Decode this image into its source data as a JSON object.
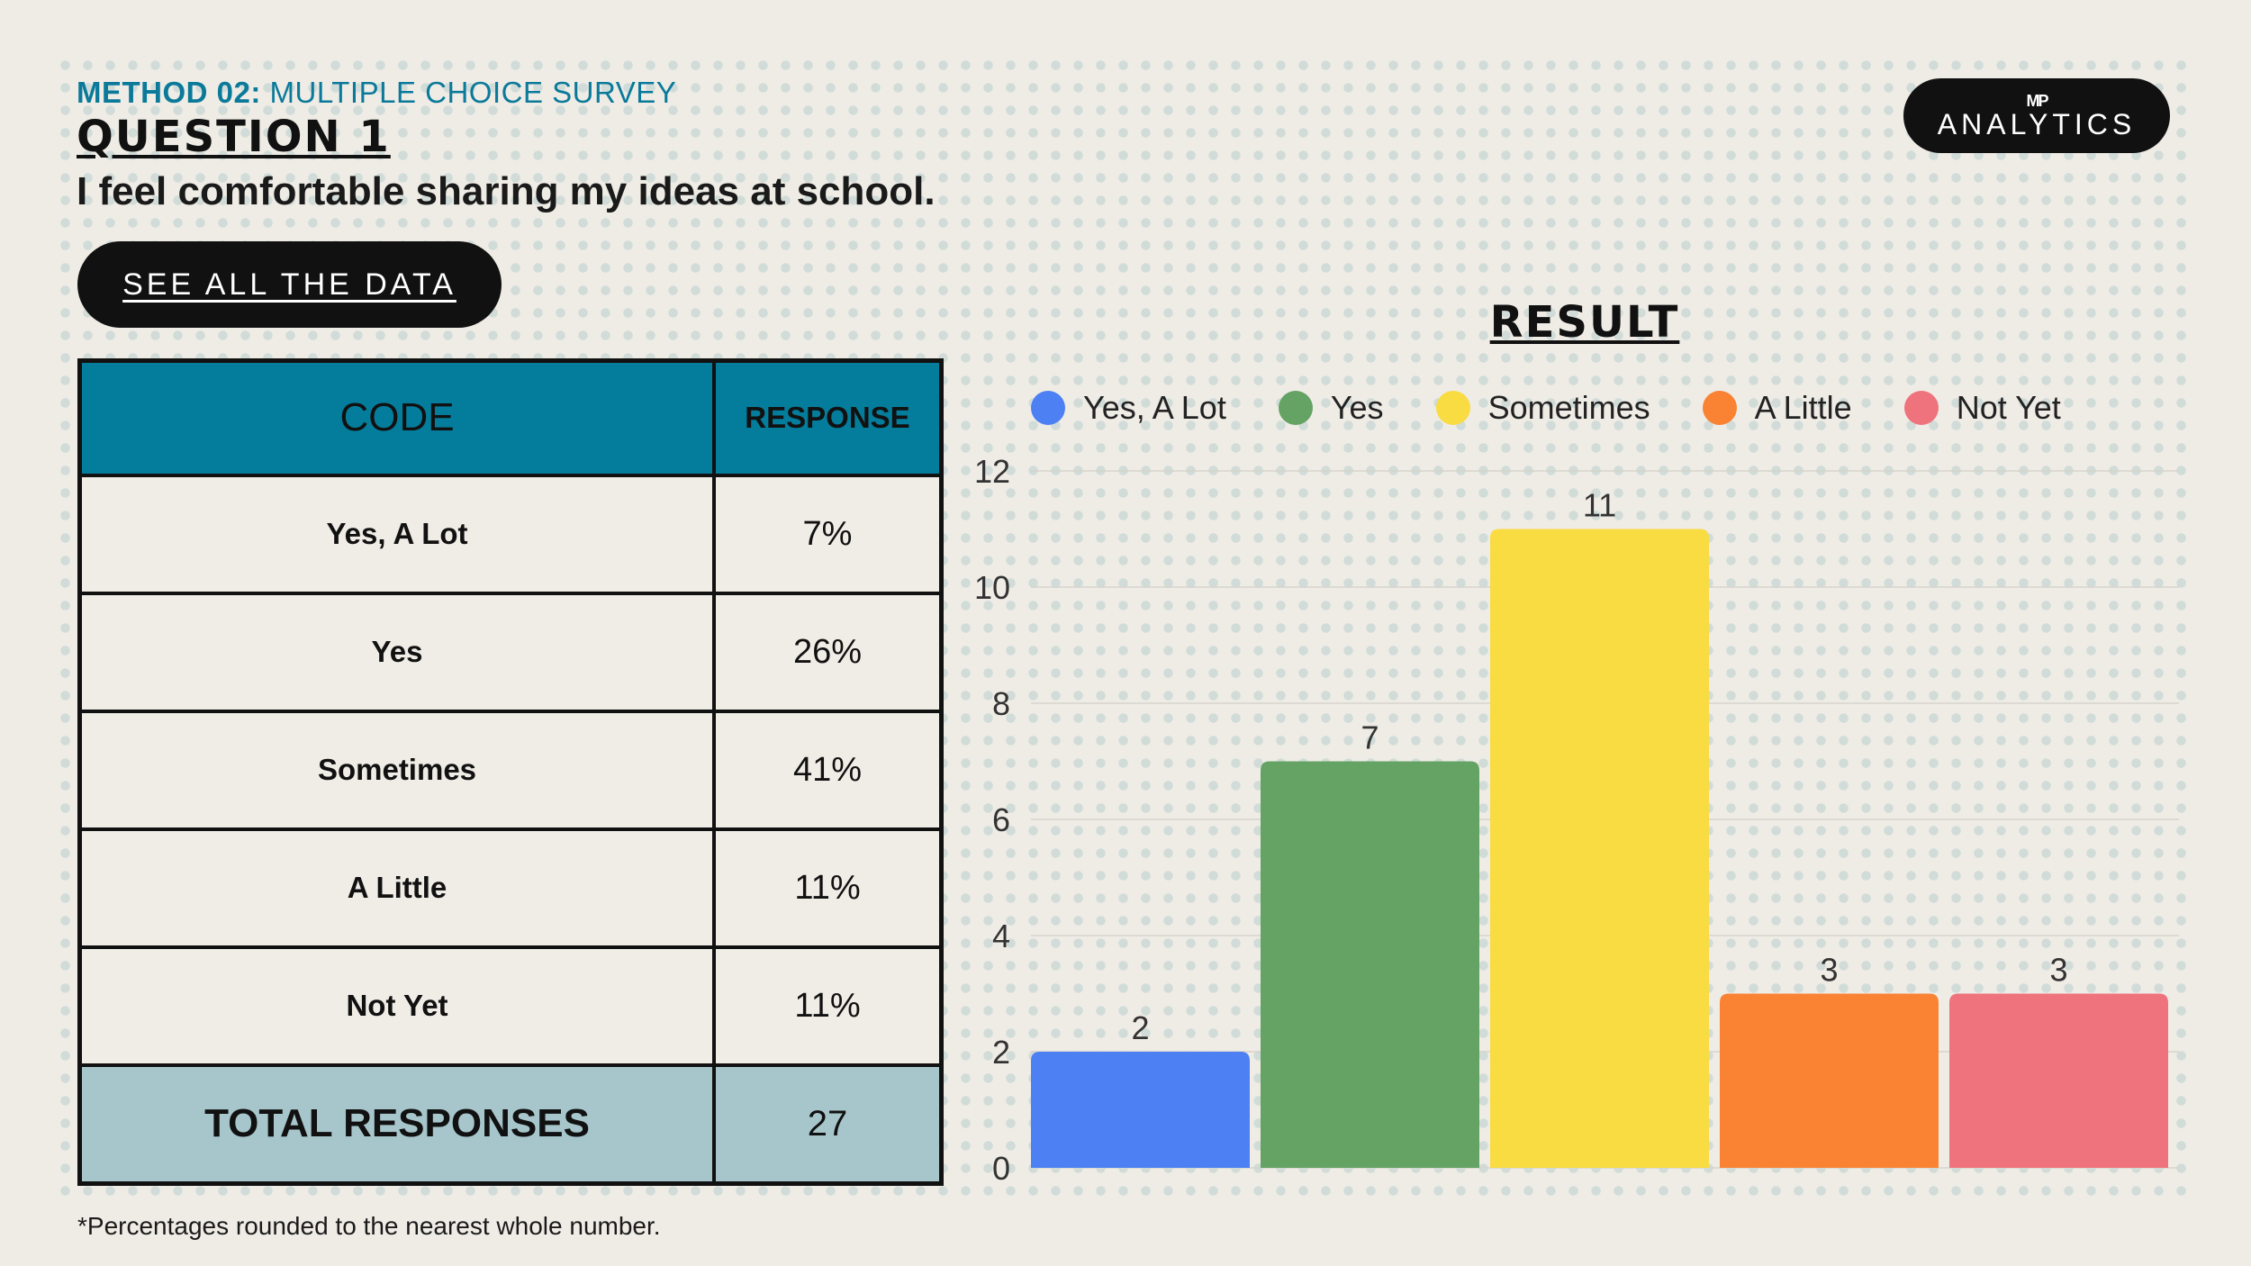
{
  "header": {
    "method_prefix": "METHOD 02:",
    "method_rest": " MULTIPLE CHOICE SURVEY",
    "question_label": "QUESTION 1",
    "question_text": "I feel comfortable sharing my ideas at school.",
    "see_all_label": "SEE ALL THE DATA"
  },
  "logo": {
    "mark": "MP",
    "word": "ANALYTICS"
  },
  "table": {
    "headers": [
      "CODE",
      "RESPONSE"
    ],
    "rows": [
      {
        "code": "Yes, A Lot",
        "response": "7%"
      },
      {
        "code": "Yes",
        "response": "26%"
      },
      {
        "code": "Sometimes",
        "response": "41%"
      },
      {
        "code": "A Little",
        "response": "11%"
      },
      {
        "code": "Not Yet",
        "response": "11%"
      }
    ],
    "total_label": "TOTAL RESPONSES",
    "total_value": "27"
  },
  "footnote": "*Percentages rounded to the nearest whole number.",
  "chart_data": {
    "type": "bar",
    "title": "RESULT",
    "categories": [
      "Yes, A Lot",
      "Yes",
      "Sometimes",
      "A Little",
      "Not Yet"
    ],
    "values": [
      2,
      7,
      11,
      3,
      3
    ],
    "colors": [
      "#4d80f3",
      "#64a363",
      "#f9db42",
      "#f98333",
      "#ef737d"
    ],
    "ylim": [
      0,
      12
    ],
    "yticks": [
      0,
      2,
      4,
      6,
      8,
      10,
      12
    ],
    "xlabel": "",
    "ylabel": "",
    "grid": true,
    "legend": "top",
    "data_labels": true
  }
}
